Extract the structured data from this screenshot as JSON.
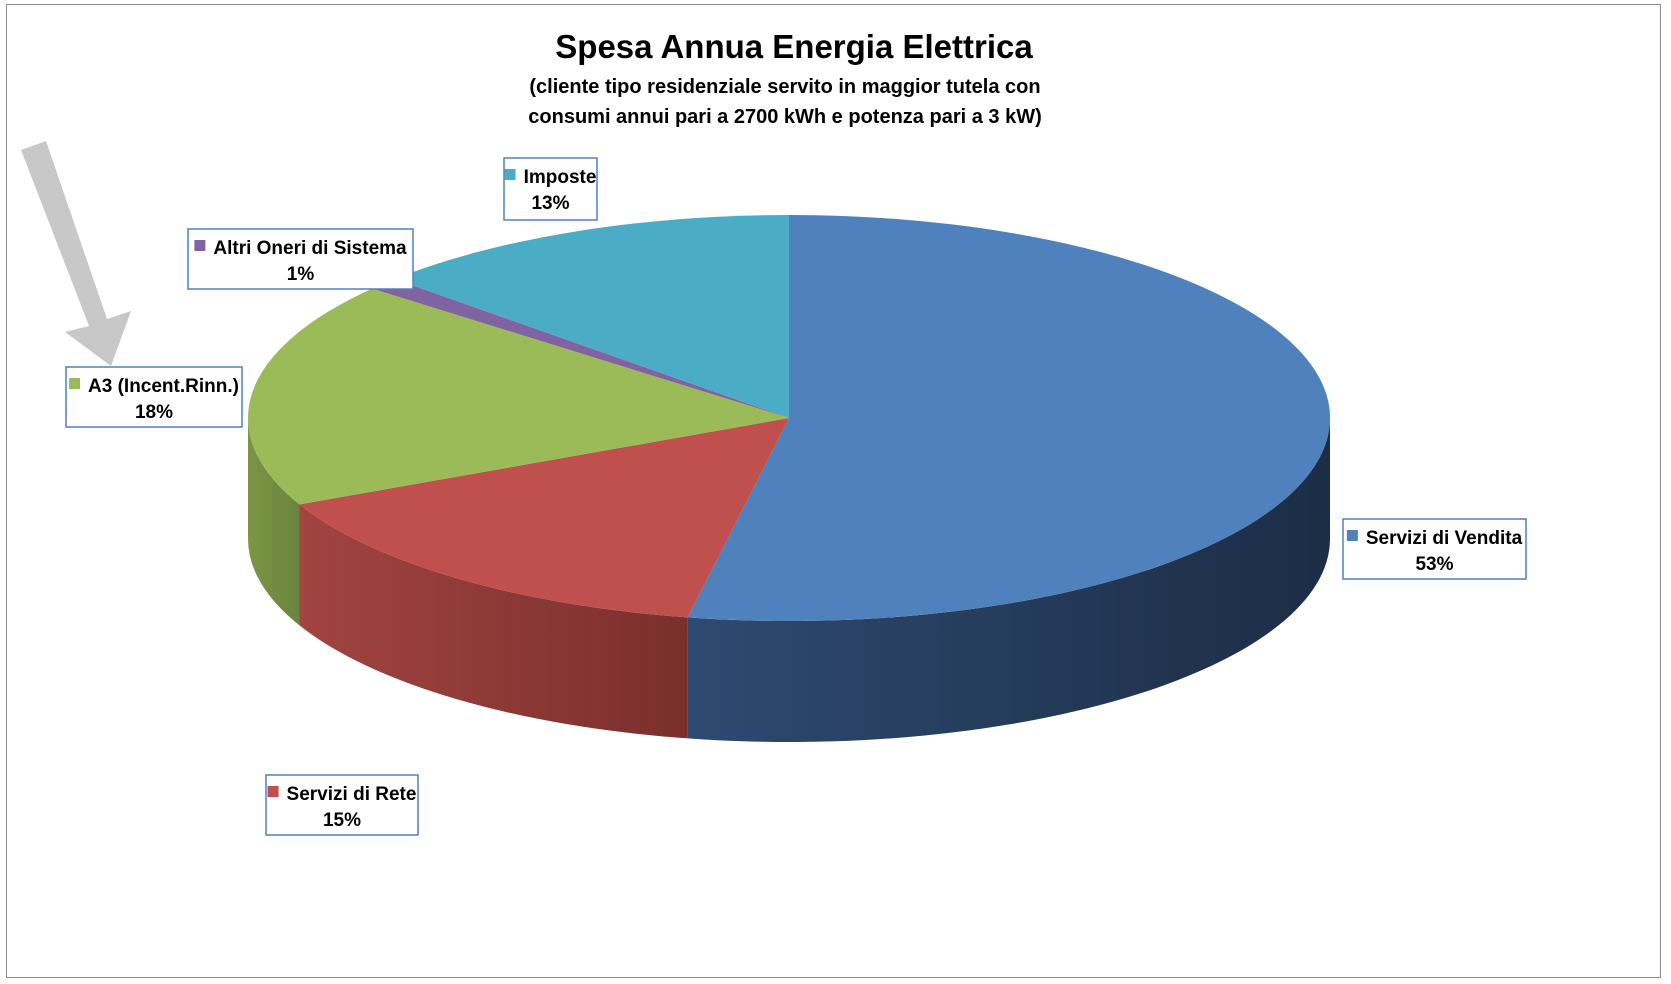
{
  "chart_data": {
    "type": "pie",
    "title": "Spesa Annua Energia Elettrica",
    "subtitle_lines": [
      "(cliente tipo residenziale servito in maggior tutela con",
      "consumi annui pari a 2700 kWh e potenza pari a 3 kW)"
    ],
    "slices": [
      {
        "name": "Servizi di Vendita",
        "value": 53,
        "label": "53%",
        "color": "#4F81BD"
      },
      {
        "name": "Servizi di Rete",
        "value": 15,
        "label": "15%",
        "color": "#C0504D"
      },
      {
        "name": "A3 (Incent.Rinn.)",
        "value": 18,
        "label": "18%",
        "color": "#9BBB59"
      },
      {
        "name": "Altri Oneri di Sistema",
        "value": 1,
        "label": "1%",
        "color": "#8064A2"
      },
      {
        "name": "Imposte",
        "value": 13,
        "label": "13%",
        "color": "#4BACC6"
      }
    ],
    "start": "top (12 o'clock), clockwise",
    "style": "3D pie with data labels outside",
    "annotation_arrow": {
      "color": "#C8C8C8",
      "points_to": "A3 (Incent.Rinn.)"
    }
  }
}
